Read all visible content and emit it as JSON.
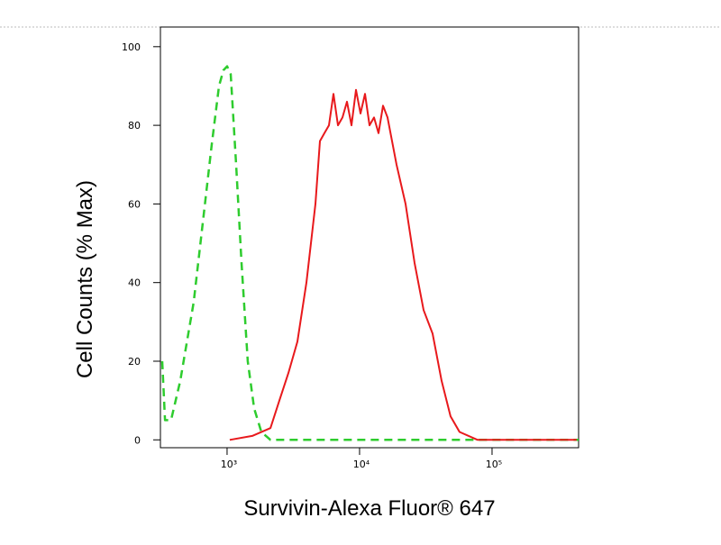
{
  "chart_data": {
    "type": "line",
    "xlabel": "Survivin-Alexa Fluor® 647",
    "ylabel": "Cell Counts (% Max)",
    "xscale": "log",
    "xlim": [
      314,
      450000
    ],
    "ylim": [
      -2,
      105
    ],
    "xticks": [
      {
        "value": 1000,
        "label": "10³"
      },
      {
        "value": 10000,
        "label": "10⁴"
      },
      {
        "value": 100000,
        "label": "10⁵"
      }
    ],
    "yticks": [
      0,
      20,
      40,
      60,
      80,
      100
    ],
    "series": [
      {
        "color": "#2ecc2e",
        "dashed": true,
        "x": [
          324,
          340,
          378,
          443,
          560,
          655,
          766,
          869,
          939,
          1000,
          1065,
          1170,
          1285,
          1433,
          1600,
          1814,
          2124,
          5000,
          20000,
          100000,
          450000
        ],
        "values": [
          20,
          5,
          5,
          15,
          35,
          55,
          75,
          90,
          94,
          95,
          93,
          70,
          45,
          20,
          8,
          2,
          0,
          0,
          0,
          0,
          0
        ]
      },
      {
        "color": "#e8191c",
        "dashed": false,
        "x": [
          1048,
          1550,
          2124,
          2483,
          2904,
          3396,
          3972,
          4645,
          5023,
          5432,
          5875,
          6353,
          6871,
          7430,
          8035,
          8690,
          9398,
          10163,
          10991,
          11886,
          12854,
          13900,
          15032,
          16257,
          19011,
          22233,
          26001,
          30408,
          35561,
          41587,
          48634,
          56876,
          77800,
          435500
        ],
        "values": [
          0,
          1,
          3,
          10,
          17,
          25,
          40,
          60,
          76,
          78,
          80,
          88,
          80,
          82,
          86,
          80,
          89,
          83,
          88,
          80,
          82,
          78,
          85,
          82,
          70,
          60,
          45,
          33,
          27,
          15,
          6,
          2,
          0,
          0
        ]
      }
    ]
  }
}
